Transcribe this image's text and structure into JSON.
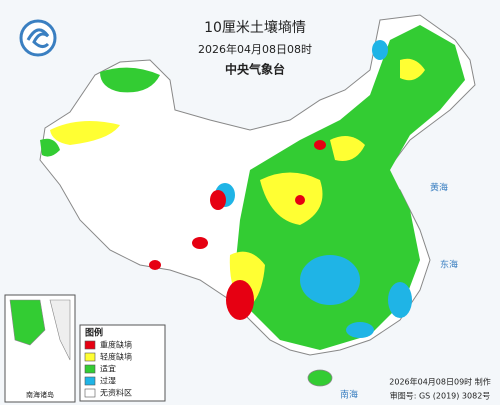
{
  "header": {
    "title": "10厘米土壤墒情",
    "time": "2026年04月08日08时",
    "agency": "中央气象台"
  },
  "legend": {
    "title": "图例",
    "items": [
      {
        "label": "重度缺墒",
        "color": "#e60012"
      },
      {
        "label": "轻度缺墒",
        "color": "#ffff33"
      },
      {
        "label": "适宜",
        "color": "#33cc33"
      },
      {
        "label": "过湿",
        "color": "#1fb4e6"
      },
      {
        "label": "无资料区",
        "color": "#ffffff"
      }
    ]
  },
  "sea_labels": [
    "黄海",
    "东海",
    "南海"
  ],
  "inset": {
    "label": "南海诸岛"
  },
  "footer": {
    "made": "2026年04月08日09时 制作",
    "approval": "审图号: GS (2019) 3082号"
  }
}
